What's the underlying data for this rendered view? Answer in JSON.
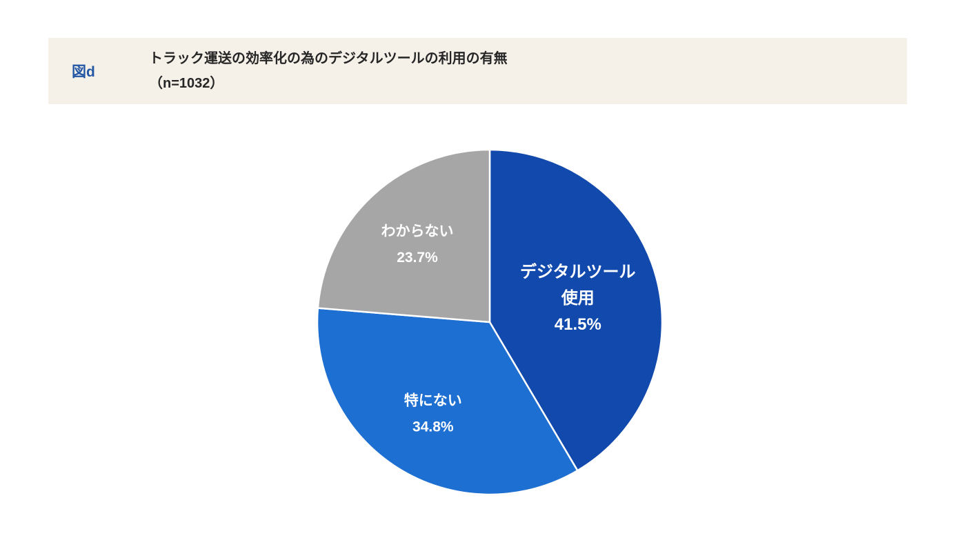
{
  "header": {
    "figure_label": "図d",
    "title": "トラック運送の効率化の為のデジタルツールの利用の有無",
    "subtitle": "（n=1032）"
  },
  "chart_data": {
    "type": "pie",
    "title": "トラック運送の効率化の為のデジタルツールの利用の有無",
    "sample_size_label": "（n=1032）",
    "n": 1032,
    "start_angle_deg": 0,
    "direction": "clockwise",
    "legend": "none",
    "label_color": "#ffffff",
    "slice_border_color": "#ffffff",
    "slices": [
      {
        "label": "デジタルツール使用",
        "value": 41.5,
        "color": "#1249ad",
        "label_lines": [
          "デジタルツール",
          "使用",
          "41.5%"
        ],
        "label_r": 0.53,
        "label_size": 24
      },
      {
        "label": "特にない",
        "value": 34.8,
        "color": "#1d6fd2",
        "label_lines": [
          "特にない",
          "34.8%"
        ],
        "label_r": 0.62,
        "label_size": 21
      },
      {
        "label": "わからない",
        "value": 23.7,
        "color": "#a6a6a6",
        "label_lines": [
          "わからない",
          "23.7%"
        ],
        "label_r": 0.62,
        "label_size": 21
      }
    ]
  }
}
